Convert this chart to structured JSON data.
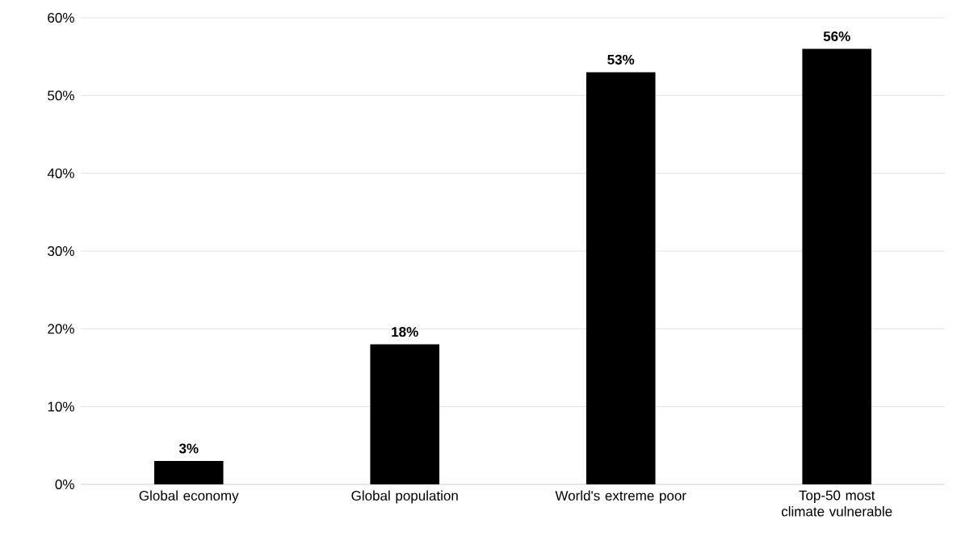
{
  "chart_data": {
    "type": "bar",
    "categories": [
      "Global economy",
      "Global population",
      "World's extreme poor",
      "Top-50 most climate vulnerable"
    ],
    "values": [
      3,
      18,
      53,
      56
    ],
    "color": "#000000",
    "value_labels": [
      "3%",
      "18%",
      "53%",
      "56%"
    ],
    "ylim": [
      0,
      60
    ],
    "yticks": [
      {
        "value": 0,
        "label": "0%"
      },
      {
        "value": 10,
        "label": "10%"
      },
      {
        "value": 20,
        "label": "20%"
      },
      {
        "value": 30,
        "label": "30%"
      },
      {
        "value": 40,
        "label": "40%"
      },
      {
        "value": 50,
        "label": "50%"
      },
      {
        "value": 60,
        "label": "60%"
      }
    ],
    "grid": "y"
  }
}
